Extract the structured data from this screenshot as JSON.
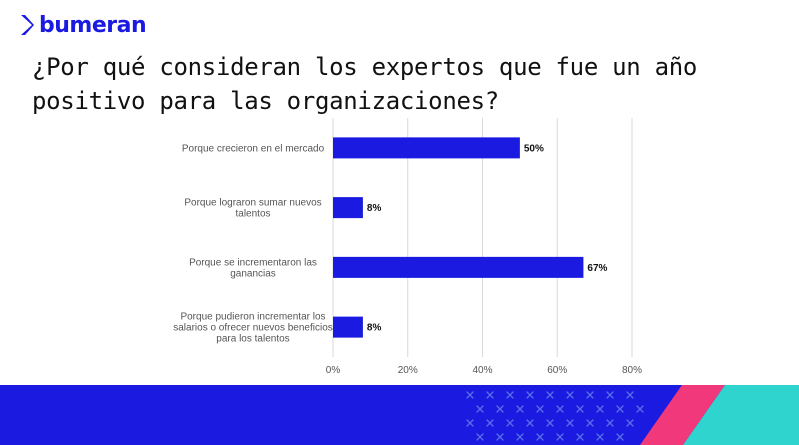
{
  "brand": {
    "name": "bumeran"
  },
  "title": "¿Por qué consideran los expertos que fue un año positivo para las organizaciones?",
  "colors": {
    "accent": "#1a1ae0",
    "bar": "#1a1ae0",
    "pink": "#f0387a",
    "cyan": "#2fd4cf",
    "grid": "#d9d9d9"
  },
  "chart_data": {
    "type": "bar",
    "orientation": "horizontal",
    "categories": [
      "Porque crecieron en el mercado",
      "Porque lograron sumar nuevos talentos",
      "Porque se incrementaron las ganancias",
      "Porque pudieron incrementar los salarios o ofrecer nuevos beneficios para los talentos"
    ],
    "category_lines": [
      [
        "Porque crecieron en el mercado"
      ],
      [
        "Porque lograron sumar nuevos",
        "talentos"
      ],
      [
        "Porque se incrementaron las",
        "ganancias"
      ],
      [
        "Porque pudieron incrementar los",
        "salarios o ofrecer nuevos beneficios",
        "para los talentos"
      ]
    ],
    "values": [
      50,
      8,
      67,
      8
    ],
    "value_labels": [
      "50%",
      "8%",
      "67%",
      "8%"
    ],
    "xlim": [
      0,
      80
    ],
    "xticks": [
      0,
      20,
      40,
      60,
      80
    ],
    "xtick_labels": [
      "0%",
      "20%",
      "40%",
      "60%",
      "80%"
    ],
    "grid": true
  }
}
